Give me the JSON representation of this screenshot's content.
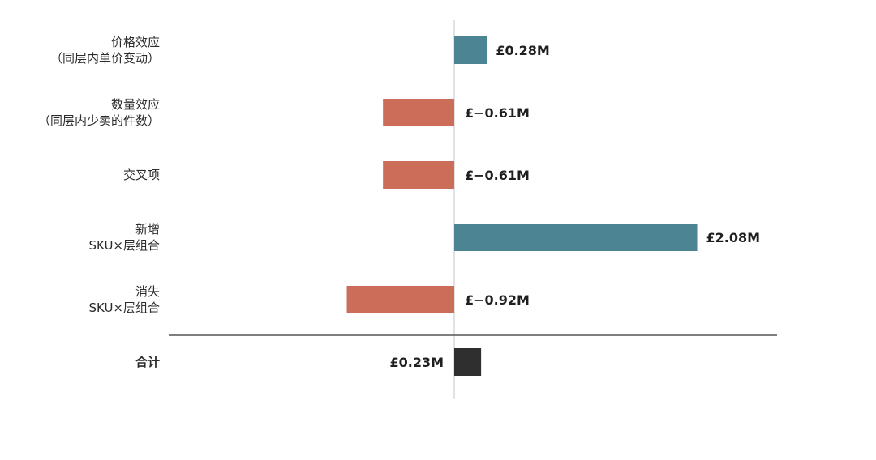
{
  "chart_data": {
    "type": "bar",
    "orientation": "horizontal",
    "categories": [
      [
        "价格效应",
        "（同层内单价变动）"
      ],
      [
        "数量效应",
        "（同层内少卖的件数）"
      ],
      [
        "交叉项"
      ],
      [
        "新增",
        "SKU×层组合"
      ],
      [
        "消失",
        "SKU×层组合"
      ]
    ],
    "values": [
      0.28,
      -0.61,
      -0.61,
      2.08,
      -0.92
    ],
    "value_labels": [
      "£0.28M",
      "£−0.61M",
      "£−0.61M",
      "£2.08M",
      "£−0.92M"
    ],
    "total": {
      "label": "合计",
      "value": 0.23,
      "value_label": "£0.23M"
    },
    "colors": {
      "positive": "#4d8494",
      "negative": "#cc6d5a",
      "total": "#2f2f2f",
      "zero_line": "#cfcfcf",
      "separator": "#555555"
    },
    "xlim": [
      -2.4,
      2.74
    ],
    "grid": false,
    "legend": false
  }
}
